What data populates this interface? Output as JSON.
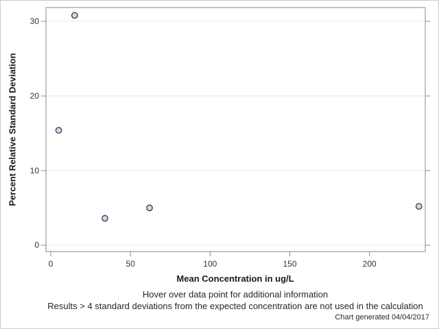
{
  "chart_data": {
    "type": "scatter",
    "title": "",
    "xlabel": "Mean Concentration in ug/L",
    "ylabel": "Percent Relative Standard Deviation",
    "x_ticks": [
      0,
      50,
      100,
      150,
      200
    ],
    "y_ticks": [
      0,
      10,
      20,
      30
    ],
    "xlim": [
      -3,
      235
    ],
    "ylim": [
      -0.85,
      31.85
    ],
    "grid": "horizontal-only",
    "legend": "none",
    "points": [
      {
        "x": 5,
        "y": 15.4
      },
      {
        "x": 15,
        "y": 30.8
      },
      {
        "x": 34,
        "y": 3.6
      },
      {
        "x": 62,
        "y": 5.0
      },
      {
        "x": 231,
        "y": 5.2
      }
    ],
    "marker": {
      "shape": "circle",
      "fill": "#cdd9e7",
      "stroke": "#39424e"
    }
  },
  "footnotes": {
    "hover": "Hover over data point for additional information",
    "exclusion": "Results > 4 standard deviations from the expected concentration are not used in the calculation",
    "generated": "Chart generated 04/04/2017"
  },
  "colors": {
    "axis": "#8a8a8a",
    "gridline": "#e6e6e6",
    "tick_label": "#333333",
    "background": "#ffffff",
    "frame_border": "#c9c9c9"
  }
}
